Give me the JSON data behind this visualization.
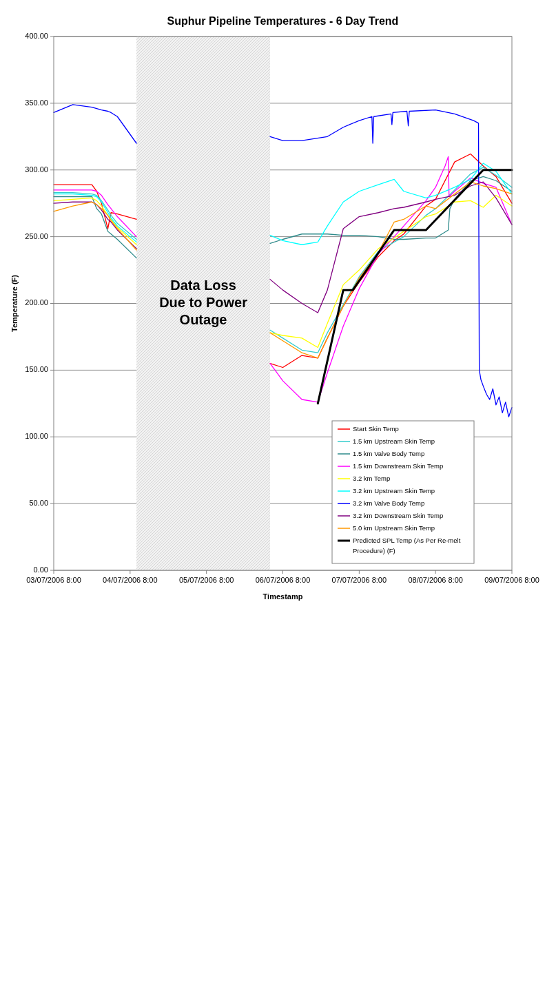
{
  "chart_data": {
    "type": "line",
    "title": "Suphur Pipeline Temperatures - 6 Day Trend",
    "xlabel": "Timestamp",
    "ylabel": "Temperature (F)",
    "x": [
      "2006-07-03T08:00",
      "2006-07-03T14:00",
      "2006-07-03T20:00",
      "2006-07-03T21:30",
      "2006-07-03T23:00",
      "2006-07-04T01:00",
      "2006-07-04T02:00",
      "2006-07-04T04:00",
      "2006-07-04T10:00",
      "2006-07-05T08:00",
      "2006-07-06T04:00",
      "2006-07-06T08:00",
      "2006-07-06T14:00",
      "2006-07-06T19:00",
      "2006-07-06T22:00",
      "2006-07-07T03:00",
      "2006-07-07T08:00",
      "2006-07-07T14:00",
      "2006-07-07T19:00",
      "2006-07-07T22:00",
      "2006-07-08T05:00",
      "2006-07-08T08:00",
      "2006-07-08T14:00",
      "2006-07-08T19:00",
      "2006-07-08T23:00",
      "2006-07-09T03:00",
      "2006-07-09T08:00"
    ],
    "series": [
      {
        "name": "Start Skin Temp",
        "color": "#ff0000",
        "values": [
          289,
          289,
          289,
          284,
          275,
          256,
          268,
          267,
          263,
          null,
          155,
          152,
          161,
          159,
          174,
          198,
          216,
          235,
          247,
          252,
          273,
          278,
          306,
          312,
          303,
          295,
          275
        ]
      },
      {
        "name": "1.5 km Upstream Skin Temp",
        "color": "#33cccc",
        "values": [
          283,
          283,
          282,
          281,
          277,
          270,
          266,
          260,
          248,
          null,
          180,
          174,
          165,
          163,
          178,
          199,
          220,
          239,
          246,
          250,
          266,
          271,
          285,
          297,
          302,
          296,
          287
        ]
      },
      {
        "name": "1.5 km Valve Body Temp",
        "color": "#2e8b8b",
        "x": [
          "2006-07-03T08:00",
          "2006-07-03T14:00",
          "2006-07-03T20:00",
          "2006-07-03T21:30",
          "2006-07-03T23:00",
          "2006-07-04T01:00",
          "2006-07-04T02:00",
          "2006-07-04T04:00",
          "2006-07-04T10:00",
          "2006-07-05T08:00",
          "2006-07-06T04:00",
          "2006-07-06T08:00",
          "2006-07-06T14:00",
          "2006-07-06T19:00",
          "2006-07-06T22:00",
          "2006-07-07T03:00",
          "2006-07-07T08:00",
          "2006-07-07T14:00",
          "2006-07-07T19:00",
          "2006-07-07T22:00",
          "2006-07-08T05:00",
          "2006-07-08T08:00",
          "2006-07-08T12:00",
          "2006-07-08T12:30",
          "2006-07-08T14:00",
          "2006-07-08T19:00",
          "2006-07-08T23:00",
          "2006-07-09T03:00",
          "2006-07-09T08:00"
        ],
        "values": [
          280,
          280,
          280,
          271,
          267,
          254,
          252,
          248,
          234,
          null,
          245,
          248,
          252,
          252,
          252,
          251,
          251,
          250,
          248,
          248,
          249,
          249,
          255,
          271,
          278,
          292,
          295,
          292,
          284
        ]
      },
      {
        "name": "1.5 km Downstream Skin Temp",
        "color": "#ff00ff",
        "x": [
          "2006-07-03T08:00",
          "2006-07-03T14:00",
          "2006-07-03T20:00",
          "2006-07-03T21:30",
          "2006-07-03T23:00",
          "2006-07-04T01:00",
          "2006-07-04T02:00",
          "2006-07-04T04:00",
          "2006-07-04T10:00",
          "2006-07-05T08:00",
          "2006-07-06T04:00",
          "2006-07-06T08:00",
          "2006-07-06T14:00",
          "2006-07-06T19:00",
          "2006-07-06T22:00",
          "2006-07-07T03:00",
          "2006-07-07T08:00",
          "2006-07-07T14:00",
          "2006-07-07T19:00",
          "2006-07-07T22:00",
          "2006-07-08T05:00",
          "2006-07-08T08:00",
          "2006-07-08T11:00",
          "2006-07-08T12:00",
          "2006-07-08T12:15",
          "2006-07-08T14:00",
          "2006-07-08T19:00",
          "2006-07-08T23:00",
          "2006-07-09T03:00",
          "2006-07-09T08:00"
        ],
        "values": [
          285,
          285,
          285,
          284,
          281,
          274,
          271,
          265,
          250,
          null,
          155,
          142,
          128,
          126,
          148,
          183,
          211,
          237,
          250,
          258,
          277,
          287,
          303,
          310,
          280,
          284,
          294,
          290,
          287,
          259
        ]
      },
      {
        "name": "3.2 km Temp",
        "color": "#ffff00",
        "values": [
          277,
          278,
          279,
          277,
          273,
          266,
          263,
          257,
          244,
          null,
          178,
          176,
          174,
          167,
          185,
          214,
          225,
          241,
          249,
          254,
          265,
          267,
          276,
          277,
          272,
          281,
          273
        ]
      },
      {
        "name": "3.2 km Upstream Skin Temp",
        "color": "#00ffff",
        "values": [
          282,
          282,
          281,
          280,
          276,
          268,
          264,
          258,
          246,
          null,
          251,
          247,
          244,
          246,
          258,
          276,
          284,
          289,
          293,
          284,
          279,
          281,
          287,
          293,
          305,
          299,
          282
        ]
      },
      {
        "name": "3.2 km Valve Body Temp",
        "color": "#0000ff",
        "x": [
          "2006-07-03T08:00",
          "2006-07-03T14:00",
          "2006-07-03T20:00",
          "2006-07-03T21:30",
          "2006-07-03T23:00",
          "2006-07-04T01:00",
          "2006-07-04T02:00",
          "2006-07-04T04:00",
          "2006-07-04T10:00",
          "2006-07-05T08:00",
          "2006-07-06T04:00",
          "2006-07-06T08:00",
          "2006-07-06T14:00",
          "2006-07-06T22:00",
          "2006-07-07T03:00",
          "2006-07-07T08:00",
          "2006-07-07T12:00",
          "2006-07-07T12:17",
          "2006-07-07T12:35",
          "2006-07-07T18:00",
          "2006-07-07T18:17",
          "2006-07-07T18:35",
          "2006-07-07T23:00",
          "2006-07-07T23:26",
          "2006-07-07T23:45",
          "2006-07-08T08:00",
          "2006-07-08T14:00",
          "2006-07-08T20:00",
          "2006-07-08T21:30",
          "2006-07-08T21:45",
          "2006-07-08T22:15",
          "2006-07-08T23:00",
          "2006-07-09T00:00",
          "2006-07-09T01:00",
          "2006-07-09T02:00",
          "2006-07-09T03:00",
          "2006-07-09T04:00",
          "2006-07-09T05:00",
          "2006-07-09T06:00",
          "2006-07-09T07:00",
          "2006-07-09T08:00"
        ],
        "values": [
          343,
          349,
          347,
          346,
          345,
          344,
          343,
          340,
          320,
          null,
          325,
          322,
          322,
          325,
          332,
          337,
          340,
          320,
          340,
          342,
          334,
          343,
          344,
          333,
          344,
          345,
          342,
          337,
          335,
          150,
          143,
          138,
          132,
          128,
          136,
          124,
          130,
          118,
          126,
          115,
          122
        ]
      },
      {
        "name": "3.2 km Downstream Skin Temp",
        "color": "#800080",
        "values": [
          275,
          276,
          276,
          274,
          270,
          263,
          261,
          255,
          241,
          null,
          218,
          210,
          200,
          193,
          210,
          256,
          265,
          268,
          271,
          272,
          276,
          278,
          281,
          288,
          291,
          279,
          259
        ]
      },
      {
        "name": "5.0 km Upstream Skin Temp",
        "color": "#ff9900",
        "values": [
          269,
          273,
          276,
          274,
          271,
          266,
          262,
          256,
          240,
          null,
          178,
          172,
          163,
          159,
          174,
          198,
          219,
          238,
          261,
          263,
          273,
          271,
          282,
          291,
          288,
          286,
          282
        ]
      },
      {
        "name": "Predicted SPL Temp (As Per Re-melt Procedure) (F)",
        "color": "#000000",
        "x": [
          "2006-07-06T19:00",
          "2006-07-07T03:00",
          "2006-07-07T06:00",
          "2006-07-07T19:00",
          "2006-07-08T05:00",
          "2006-07-08T23:00",
          "2006-07-09T08:00"
        ],
        "values": [
          125,
          210,
          210,
          255,
          255,
          300,
          300
        ]
      }
    ],
    "xlim": [
      "2006-07-03T08:00",
      "2006-07-09T08:00"
    ],
    "xticks": [
      {
        "value": "2006-07-03T08:00",
        "label": "03/07/2006 8:00"
      },
      {
        "value": "2006-07-04T08:00",
        "label": "04/07/2006 8:00"
      },
      {
        "value": "2006-07-05T08:00",
        "label": "05/07/2006 8:00"
      },
      {
        "value": "2006-07-06T08:00",
        "label": "06/07/2006 8:00"
      },
      {
        "value": "2006-07-07T08:00",
        "label": "07/07/2006 8:00"
      },
      {
        "value": "2006-07-08T08:00",
        "label": "08/07/2006 8:00"
      },
      {
        "value": "2006-07-09T08:00",
        "label": "09/07/2006 8:00"
      }
    ],
    "ylim": [
      0,
      400
    ],
    "yticks": [
      {
        "value": 0,
        "label": "0.00"
      },
      {
        "value": 50,
        "label": "50.00"
      },
      {
        "value": 100,
        "label": "100.00"
      },
      {
        "value": 150,
        "label": "150.00"
      },
      {
        "value": 200,
        "label": "200.00"
      },
      {
        "value": 250,
        "label": "250.00"
      },
      {
        "value": 300,
        "label": "300.00"
      },
      {
        "value": 350,
        "label": "350.00"
      },
      {
        "value": 400,
        "label": "400.00"
      }
    ],
    "bands": [
      {
        "axis": "x",
        "from": "2006-07-04T10:00",
        "to": "2006-07-06T04:00",
        "label": "Data Loss Due to Power Outage",
        "color": "#d4d4d4"
      }
    ],
    "grid": "y",
    "legend": "bottom right",
    "line_style": "solid"
  }
}
